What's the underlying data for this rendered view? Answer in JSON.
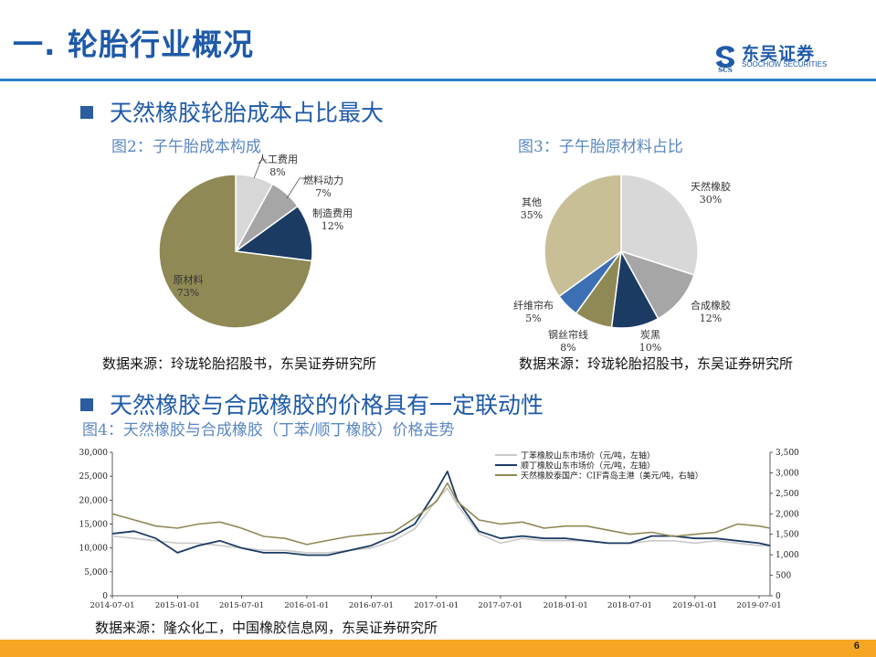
{
  "header": {
    "title": "一. 轮胎行业概况",
    "logo_cn": "东吴证券",
    "logo_en": "SOOCHOW SECURITIES",
    "logo_mark": "SCS"
  },
  "section1": {
    "title": "天然橡胶轮胎成本占比最大"
  },
  "fig2": {
    "caption": "图2：子午胎成本构成",
    "source": "数据来源：玲珑轮胎招股书，东吴证券研究所"
  },
  "fig3": {
    "caption": "图3：子午胎原材料占比",
    "source": "数据来源：玲珑轮胎招股书，东吴证券研究所"
  },
  "section2": {
    "title": "天然橡胶与合成橡胶的价格具有一定联动性"
  },
  "fig4": {
    "caption": "图4：天然橡胶与合成橡胶（丁苯/顺丁橡胶）价格走势",
    "source": "数据来源：隆众化工，中国橡胶信息网，东吴证券研究所"
  },
  "page_number": "6",
  "chart_data": [
    {
      "type": "pie",
      "labels": [
        "人工费用",
        "燃料动力",
        "制造费用",
        "原材料"
      ],
      "values": [
        8,
        7,
        12,
        73
      ],
      "value_labels": [
        "8%",
        "7%",
        "12%",
        "73%"
      ],
      "colors": [
        "#d8d8d8",
        "#a6a6a6",
        "#1c3b63",
        "#8f8955"
      ]
    },
    {
      "type": "pie",
      "labels": [
        "天然橡胶",
        "合成橡胶",
        "炭黑",
        "钢丝帘线",
        "纤维帘布",
        "其他"
      ],
      "values": [
        30,
        12,
        10,
        8,
        5,
        35
      ],
      "value_labels": [
        "30%",
        "12%",
        "10%",
        "8%",
        "5%",
        "35%"
      ],
      "colors": [
        "#d8d8d8",
        "#a6a6a6",
        "#1c3b63",
        "#8f8955",
        "#3d6fb4",
        "#c8bf97"
      ]
    },
    {
      "type": "line",
      "x_ticks": [
        "2014-07-01",
        "2015-01-01",
        "2015-07-01",
        "2016-01-01",
        "2016-07-01",
        "2017-01-01",
        "2017-07-01",
        "2018-01-01",
        "2018-07-01",
        "2019-01-01",
        "2019-07-01"
      ],
      "y_left_ticks": [
        "0",
        "5,000",
        "10,000",
        "15,000",
        "20,000",
        "25,000",
        "30,000"
      ],
      "y_right_ticks": [
        "0",
        "500",
        "1,000",
        "1,500",
        "2,000",
        "2,500",
        "3,000",
        "3,500"
      ],
      "ylim_left": [
        0,
        30000
      ],
      "ylim_right": [
        0,
        3500
      ],
      "series": [
        {
          "name": "丁苯橡胶山东市场价（元/吨，左轴）",
          "axis": "left",
          "color": "#c9c9c9",
          "x": [
            "2014-07-01",
            "2014-09-01",
            "2014-11-01",
            "2015-01-01",
            "2015-03-01",
            "2015-05-01",
            "2015-07-01",
            "2015-09-01",
            "2015-11-01",
            "2016-01-01",
            "2016-03-01",
            "2016-05-01",
            "2016-07-01",
            "2016-09-01",
            "2016-11-01",
            "2017-01-01",
            "2017-02-01",
            "2017-03-01",
            "2017-05-01",
            "2017-07-01",
            "2017-09-01",
            "2017-11-01",
            "2018-01-01",
            "2018-03-01",
            "2018-05-01",
            "2018-07-01",
            "2018-09-01",
            "2018-11-01",
            "2019-01-01",
            "2019-03-01",
            "2019-05-01",
            "2019-07-01",
            "2019-08-01"
          ],
          "y": [
            12500,
            12000,
            11500,
            11000,
            11000,
            10500,
            10000,
            9500,
            9500,
            9000,
            9000,
            9500,
            10000,
            11500,
            14000,
            20000,
            22500,
            19000,
            13000,
            11000,
            12000,
            11500,
            11500,
            11500,
            11000,
            11000,
            11500,
            11500,
            11000,
            11500,
            11000,
            10500,
            10500
          ]
        },
        {
          "name": "顺丁橡胶山东市场价（元/吨，左轴）",
          "axis": "left",
          "color": "#1c3b63",
          "x": [
            "2014-07-01",
            "2014-09-01",
            "2014-11-01",
            "2015-01-01",
            "2015-03-01",
            "2015-05-01",
            "2015-07-01",
            "2015-09-01",
            "2015-11-01",
            "2016-01-01",
            "2016-03-01",
            "2016-05-01",
            "2016-07-01",
            "2016-09-01",
            "2016-11-01",
            "2017-01-01",
            "2017-02-01",
            "2017-03-01",
            "2017-05-01",
            "2017-07-01",
            "2017-09-01",
            "2017-11-01",
            "2018-01-01",
            "2018-03-01",
            "2018-05-01",
            "2018-07-01",
            "2018-09-01",
            "2018-11-01",
            "2019-01-01",
            "2019-03-01",
            "2019-05-01",
            "2019-07-01",
            "2019-08-01"
          ],
          "y": [
            13000,
            13500,
            12000,
            9000,
            10500,
            11500,
            10000,
            9000,
            9000,
            8500,
            8500,
            9500,
            10500,
            12500,
            15000,
            22000,
            26000,
            20000,
            13500,
            12000,
            12500,
            12000,
            12000,
            11500,
            11000,
            11000,
            12500,
            12500,
            12000,
            12000,
            11500,
            11000,
            10500
          ]
        },
        {
          "name": "天然橡胶泰国产：CIF青岛主港（美元/吨，右轴）",
          "axis": "right",
          "color": "#8f8955",
          "x": [
            "2014-07-01",
            "2014-09-01",
            "2014-11-01",
            "2015-01-01",
            "2015-03-01",
            "2015-05-01",
            "2015-07-01",
            "2015-09-01",
            "2015-11-01",
            "2016-01-01",
            "2016-03-01",
            "2016-05-01",
            "2016-07-01",
            "2016-09-01",
            "2016-11-01",
            "2017-01-01",
            "2017-02-01",
            "2017-03-01",
            "2017-05-01",
            "2017-07-01",
            "2017-09-01",
            "2017-11-01",
            "2018-01-01",
            "2018-03-01",
            "2018-05-01",
            "2018-07-01",
            "2018-09-01",
            "2018-11-01",
            "2019-01-01",
            "2019-03-01",
            "2019-05-01",
            "2019-07-01",
            "2019-08-01"
          ],
          "y": [
            2000,
            1850,
            1700,
            1650,
            1750,
            1800,
            1650,
            1450,
            1400,
            1250,
            1350,
            1450,
            1500,
            1550,
            1900,
            2300,
            2750,
            2300,
            1850,
            1750,
            1800,
            1650,
            1700,
            1700,
            1600,
            1500,
            1550,
            1450,
            1500,
            1550,
            1750,
            1700,
            1650
          ]
        }
      ]
    }
  ]
}
